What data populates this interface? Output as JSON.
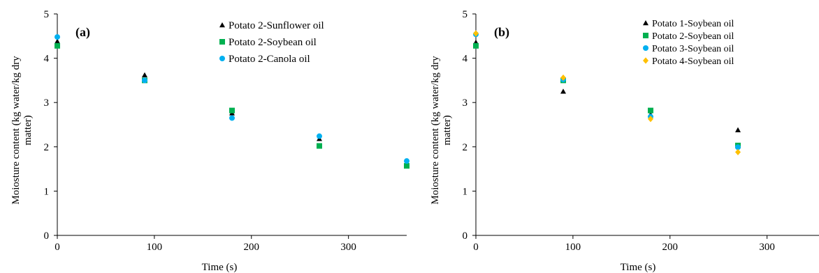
{
  "chart_data": [
    {
      "type": "scatter",
      "panel_label": "(a)",
      "xlabel": "Time (s)",
      "ylabel": "Moiosture content (kg water/kg dry matter)",
      "xlim": [
        0,
        360
      ],
      "ylim": [
        0,
        5
      ],
      "xticks": [
        0,
        100,
        200,
        300
      ],
      "yticks": [
        0,
        1,
        2,
        3,
        4,
        5
      ],
      "grid": false,
      "legend_position": "top-right",
      "series": [
        {
          "name": "Potato 2-Sunflower oil",
          "marker": "triangle",
          "color": "#000000",
          "x": [
            0,
            90,
            180,
            270,
            360
          ],
          "y": [
            4.38,
            3.62,
            2.76,
            2.18,
            1.62
          ]
        },
        {
          "name": "Potato 2-Soybean oil",
          "marker": "square",
          "color": "#00b050",
          "x": [
            0,
            90,
            180,
            270,
            360
          ],
          "y": [
            4.28,
            3.5,
            2.82,
            2.02,
            1.57
          ]
        },
        {
          "name": "Potato 2-Canola oil",
          "marker": "circle",
          "color": "#00b0f0",
          "x": [
            0,
            90,
            180,
            270,
            360
          ],
          "y": [
            4.48,
            3.5,
            2.65,
            2.24,
            1.68
          ]
        }
      ]
    },
    {
      "type": "scatter",
      "panel_label": "(b)",
      "xlabel": "Time (s)",
      "ylabel": "Moiosture content (kg water/kg dry matter)",
      "xlim": [
        0,
        360
      ],
      "ylim": [
        0,
        5
      ],
      "xticks": [
        0,
        100,
        200,
        300
      ],
      "yticks": [
        0,
        1,
        2,
        3,
        4,
        5
      ],
      "grid": false,
      "legend_position": "top-right",
      "series": [
        {
          "name": "Potato 1-Soybean oil",
          "marker": "triangle",
          "color": "#000000",
          "x": [
            0,
            90,
            180,
            270
          ],
          "y": [
            4.36,
            3.25,
            2.73,
            2.38
          ]
        },
        {
          "name": "Potato 2-Soybean oil",
          "marker": "square",
          "color": "#00b050",
          "x": [
            0,
            90,
            180,
            270
          ],
          "y": [
            4.28,
            3.5,
            2.82,
            2.03
          ]
        },
        {
          "name": "Potato 3-Soybean oil",
          "marker": "circle",
          "color": "#00b0f0",
          "x": [
            0,
            90,
            180,
            270
          ],
          "y": [
            4.54,
            3.52,
            2.68,
            1.99
          ]
        },
        {
          "name": "Potato 4-Soybean oil",
          "marker": "diamond",
          "color": "#ffc000",
          "x": [
            0,
            90,
            180,
            270
          ],
          "y": [
            4.56,
            3.56,
            2.63,
            1.88
          ]
        }
      ]
    }
  ]
}
